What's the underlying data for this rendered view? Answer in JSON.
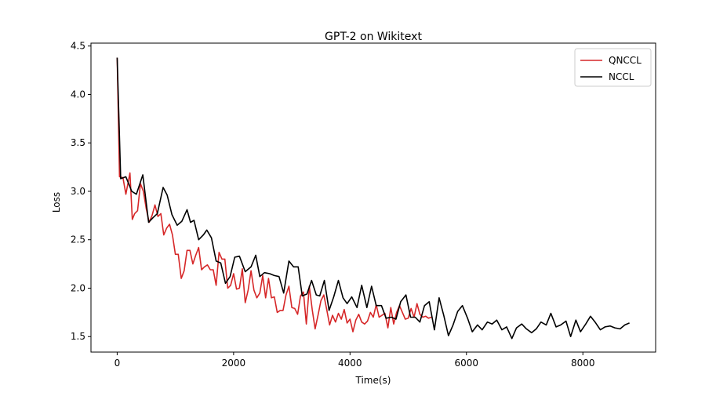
{
  "chart_data": {
    "type": "line",
    "title": "GPT-2 on Wikitext",
    "xlabel": "Time(s)",
    "ylabel": "Loss",
    "xlim": [
      -450,
      9250
    ],
    "ylim": [
      1.34,
      4.53
    ],
    "xticks": [
      0,
      2000,
      4000,
      6000,
      8000
    ],
    "xtick_labels": [
      "0",
      "2000",
      "4000",
      "6000",
      "8000"
    ],
    "yticks": [
      1.5,
      2.0,
      2.5,
      3.0,
      3.5,
      4.0,
      4.5
    ],
    "ytick_labels": [
      "1.5",
      "2.0",
      "2.5",
      "3.0",
      "3.5",
      "4.0",
      "4.5"
    ],
    "grid": false,
    "legend_position": "top-right",
    "series": [
      {
        "name": "QNCCL",
        "color": "#d62728",
        "x": [
          0,
          40,
          100,
          150,
          220,
          260,
          300,
          350,
          400,
          450,
          500,
          550,
          600,
          650,
          700,
          750,
          800,
          850,
          900,
          950,
          1000,
          1050,
          1100,
          1150,
          1200,
          1250,
          1300,
          1350,
          1400,
          1450,
          1500,
          1550,
          1600,
          1650,
          1700,
          1750,
          1800,
          1850,
          1900,
          1950,
          2000,
          2050,
          2100,
          2150,
          2200,
          2250,
          2300,
          2350,
          2400,
          2450,
          2500,
          2550,
          2600,
          2650,
          2700,
          2750,
          2800,
          2850,
          2900,
          2950,
          3000,
          3050,
          3100,
          3150,
          3200,
          3250,
          3300,
          3350,
          3400,
          3450,
          3500,
          3550,
          3600,
          3650,
          3700,
          3750,
          3800,
          3850,
          3900,
          3950,
          4000,
          4050,
          4100,
          4150,
          4200,
          4250,
          4300,
          4350,
          4400,
          4450,
          4500,
          4550,
          4600,
          4650,
          4700,
          4750,
          4800,
          4850,
          4900,
          4950,
          5000,
          5050,
          5100,
          5150,
          5200,
          5250,
          5300,
          5350,
          5400
        ],
        "y": [
          4.38,
          3.15,
          3.14,
          2.97,
          3.19,
          2.71,
          2.77,
          2.8,
          3.08,
          3.0,
          2.82,
          2.68,
          2.75,
          2.86,
          2.74,
          2.77,
          2.55,
          2.62,
          2.66,
          2.55,
          2.35,
          2.35,
          2.1,
          2.18,
          2.39,
          2.39,
          2.25,
          2.34,
          2.42,
          2.19,
          2.22,
          2.24,
          2.19,
          2.19,
          2.03,
          2.37,
          2.3,
          2.3,
          2.0,
          2.03,
          2.15,
          1.99,
          2.0,
          2.2,
          1.85,
          1.98,
          2.18,
          1.98,
          1.9,
          1.95,
          2.13,
          1.9,
          2.1,
          1.9,
          1.91,
          1.75,
          1.77,
          1.77,
          1.93,
          2.02,
          1.8,
          1.79,
          1.73,
          1.92,
          1.96,
          1.63,
          2.02,
          1.78,
          1.58,
          1.72,
          1.87,
          1.93,
          1.78,
          1.62,
          1.72,
          1.65,
          1.74,
          1.68,
          1.78,
          1.64,
          1.68,
          1.55,
          1.67,
          1.73,
          1.65,
          1.63,
          1.66,
          1.75,
          1.7,
          1.83,
          1.7,
          1.72,
          1.74,
          1.59,
          1.8,
          1.63,
          1.75,
          1.82,
          1.75,
          1.68,
          1.69,
          1.79,
          1.7,
          1.84,
          1.73,
          1.7,
          1.71,
          1.69,
          1.7
        ]
      },
      {
        "name": "NCCL",
        "color": "#000000",
        "x": [
          0,
          60,
          150,
          250,
          330,
          440,
          540,
          620,
          690,
          790,
          860,
          940,
          1030,
          1110,
          1200,
          1260,
          1320,
          1400,
          1480,
          1540,
          1620,
          1700,
          1780,
          1860,
          1940,
          2020,
          2100,
          2200,
          2300,
          2380,
          2450,
          2530,
          2620,
          2700,
          2780,
          2860,
          2950,
          3030,
          3110,
          3180,
          3260,
          3340,
          3420,
          3480,
          3560,
          3640,
          3720,
          3800,
          3880,
          3950,
          4030,
          4120,
          4200,
          4290,
          4370,
          4450,
          4540,
          4620,
          4710,
          4790,
          4870,
          4960,
          5040,
          5120,
          5200,
          5280,
          5360,
          5450,
          5530,
          5610,
          5690,
          5770,
          5850,
          5930,
          6020,
          6100,
          6190,
          6270,
          6360,
          6440,
          6520,
          6610,
          6690,
          6780,
          6860,
          6950,
          7030,
          7120,
          7200,
          7280,
          7370,
          7450,
          7540,
          7620,
          7710,
          7790,
          7880,
          7960,
          8050,
          8130,
          8210,
          8300,
          8380,
          8470,
          8550,
          8640,
          8720,
          8800
        ],
        "y": [
          4.38,
          3.13,
          3.15,
          3.0,
          2.97,
          3.17,
          2.68,
          2.73,
          2.77,
          3.04,
          2.96,
          2.76,
          2.65,
          2.69,
          2.81,
          2.68,
          2.7,
          2.5,
          2.55,
          2.6,
          2.52,
          2.28,
          2.26,
          2.05,
          2.12,
          2.32,
          2.33,
          2.17,
          2.22,
          2.34,
          2.12,
          2.16,
          2.15,
          2.13,
          2.12,
          1.95,
          2.28,
          2.22,
          2.22,
          1.92,
          1.94,
          2.08,
          1.93,
          1.92,
          2.08,
          1.77,
          1.91,
          2.08,
          1.9,
          1.84,
          1.91,
          1.8,
          2.03,
          1.8,
          2.02,
          1.82,
          1.82,
          1.69,
          1.7,
          1.68,
          1.86,
          1.93,
          1.7,
          1.7,
          1.65,
          1.82,
          1.86,
          1.57,
          1.9,
          1.72,
          1.51,
          1.62,
          1.76,
          1.82,
          1.69,
          1.55,
          1.62,
          1.57,
          1.65,
          1.63,
          1.67,
          1.57,
          1.6,
          1.48,
          1.59,
          1.63,
          1.58,
          1.54,
          1.58,
          1.65,
          1.62,
          1.74,
          1.6,
          1.62,
          1.66,
          1.5,
          1.67,
          1.55,
          1.63,
          1.71,
          1.65,
          1.57,
          1.6,
          1.61,
          1.59,
          1.58,
          1.62,
          1.64
        ]
      }
    ]
  }
}
